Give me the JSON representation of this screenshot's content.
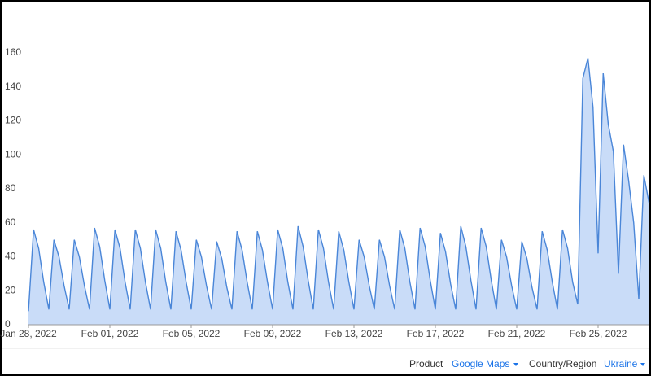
{
  "chart_data": {
    "type": "area",
    "categories": [
      "Jan 28, 2022",
      null,
      null,
      null,
      null,
      null,
      null,
      null,
      null,
      null,
      null,
      null,
      null,
      null,
      null,
      null,
      "Feb 01, 2022",
      null,
      null,
      null,
      null,
      null,
      null,
      null,
      null,
      null,
      null,
      null,
      null,
      null,
      null,
      null,
      "Feb 05, 2022",
      null,
      null,
      null,
      null,
      null,
      null,
      null,
      null,
      null,
      null,
      null,
      null,
      null,
      null,
      null,
      "Feb 09, 2022",
      null,
      null,
      null,
      null,
      null,
      null,
      null,
      null,
      null,
      null,
      null,
      null,
      null,
      null,
      null,
      "Feb 13, 2022",
      null,
      null,
      null,
      null,
      null,
      null,
      null,
      null,
      null,
      null,
      null,
      null,
      null,
      null,
      null,
      "Feb 17, 2022",
      null,
      null,
      null,
      null,
      null,
      null,
      null,
      null,
      null,
      null,
      null,
      null,
      null,
      null,
      null,
      "Feb 21, 2022",
      null,
      null,
      null,
      null,
      null,
      null,
      null,
      null,
      null,
      null,
      null,
      null,
      null,
      null,
      null,
      "Feb 25, 2022",
      null,
      null,
      null,
      null,
      null,
      null,
      null,
      null,
      null,
      null
    ],
    "values": [
      8,
      56,
      45,
      25,
      9,
      50,
      40,
      23,
      9,
      50,
      40,
      23,
      9,
      57,
      46,
      26,
      9,
      56,
      45,
      25,
      9,
      56,
      45,
      25,
      9,
      56,
      45,
      25,
      9,
      55,
      44,
      25,
      9,
      50,
      40,
      23,
      9,
      49,
      39,
      22,
      9,
      55,
      44,
      25,
      9,
      55,
      44,
      25,
      9,
      56,
      45,
      25,
      9,
      58,
      46,
      26,
      9,
      56,
      45,
      25,
      9,
      55,
      44,
      25,
      9,
      50,
      40,
      23,
      9,
      50,
      40,
      23,
      9,
      56,
      45,
      25,
      9,
      57,
      46,
      26,
      9,
      54,
      43,
      24,
      9,
      58,
      46,
      26,
      9,
      57,
      46,
      26,
      9,
      50,
      40,
      23,
      9,
      49,
      39,
      22,
      9,
      55,
      44,
      25,
      9,
      56,
      45,
      25,
      12,
      145,
      157,
      128,
      42,
      148,
      118,
      102,
      30,
      106,
      85,
      60,
      15,
      88,
      72
    ],
    "color": "#4a86d8",
    "fill": "#c9dcf8",
    "ylim": [
      0,
      180
    ],
    "yticks": [
      0,
      20,
      40,
      60,
      80,
      100,
      120,
      140,
      160
    ]
  },
  "controls": {
    "product_label": "Product",
    "product": "Google Maps",
    "region_label": "Country/Region",
    "region": "Ukraine"
  }
}
